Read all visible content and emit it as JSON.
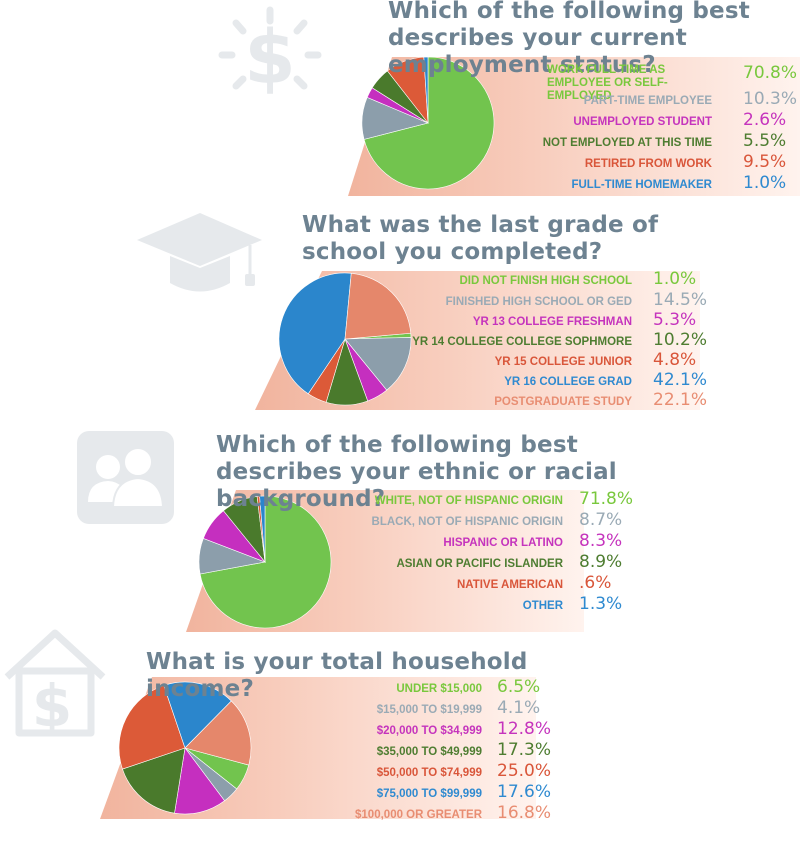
{
  "chart_data": [
    {
      "type": "pie",
      "title": "Which of the following best describes your current employment status?",
      "categories": [
        "WORK FULL TIME AS EMPLOYEE OR SELF-EMPLOYED",
        "PART-TIME EMPLOYEE",
        "UNEMPLOYED STUDENT",
        "NOT EMPLOYED AT THIS TIME",
        "RETIRED FROM WORK",
        "FULL-TIME HOMEMAKER"
      ],
      "values": [
        70.8,
        10.3,
        2.6,
        5.5,
        9.5,
        1.0
      ],
      "value_labels": [
        "70.8%",
        "10.3%",
        "2.6%",
        "5.5%",
        "9.5%",
        "1.0%"
      ]
    },
    {
      "type": "pie",
      "title": "What was the last grade of school you completed?",
      "categories": [
        "DID NOT FINISH HIGH SCHOOL",
        "FINISHED HIGH SCHOOL OR GED",
        "YR 13 COLLEGE FRESHMAN",
        "YR 14  COLLEGE COLLEGE SOPHMORE",
        "YR 15 COLLEGE JUNIOR",
        "YR 16 COLLEGE GRAD",
        "POSTGRADUATE STUDY"
      ],
      "values": [
        1.0,
        14.5,
        5.3,
        10.2,
        4.8,
        42.1,
        22.1
      ],
      "value_labels": [
        "1.0%",
        "14.5%",
        "5.3%",
        "10.2%",
        "4.8%",
        "42.1%",
        "22.1%"
      ]
    },
    {
      "type": "pie",
      "title": "Which of the following best describes your ethnic or racial background?",
      "categories": [
        "WHITE, NOT OF HISPANIC ORIGIN",
        "BLACK, NOT OF HISPANIC ORIGIN",
        "HISPANIC OR LATINO",
        "ASIAN OR PACIFIC ISLANDER",
        "NATIVE AMERICAN",
        "OTHER"
      ],
      "values": [
        71.8,
        8.7,
        8.3,
        8.9,
        0.6,
        1.3
      ],
      "value_labels": [
        "71.8%",
        "8.7%",
        "8.3%",
        "8.9%",
        ".6%",
        "1.3%"
      ]
    },
    {
      "type": "pie",
      "title": "What is your total household income?",
      "categories": [
        "UNDER $15,000",
        "$15,000 TO $19,999",
        "$20,000 TO $34,999",
        "$35,000 TO $49,999",
        "$50,000 TO $74,999",
        "$75,000 TO $99,999",
        "$100,000 OR GREATER"
      ],
      "values": [
        6.5,
        4.1,
        12.8,
        17.3,
        25.0,
        17.6,
        16.8
      ],
      "value_labels": [
        "6.5%",
        "4.1%",
        "12.8%",
        "17.3%",
        "25.0%",
        "17.6%",
        "16.8%"
      ]
    }
  ],
  "colors": {
    "category_colors": [
      "#72c44e",
      "#8c9eab",
      "#c52fbf",
      "#4a7a2c",
      "#dc5a38",
      "#2b86cc",
      "#e5876b"
    ],
    "label_colors": [
      "#79c83d",
      "#9aaab5",
      "#c534bd",
      "#4e7d31",
      "#d9563a",
      "#2f8ad0",
      "#e88d72"
    ],
    "panel": "#f2b59f",
    "panel_light": "#fde6dc",
    "icon": "#e6e9ec",
    "title": "#6d8291"
  },
  "icons": [
    "dollar-sun-icon",
    "graduation-cap-icon",
    "people-icon",
    "house-dollar-icon"
  ]
}
